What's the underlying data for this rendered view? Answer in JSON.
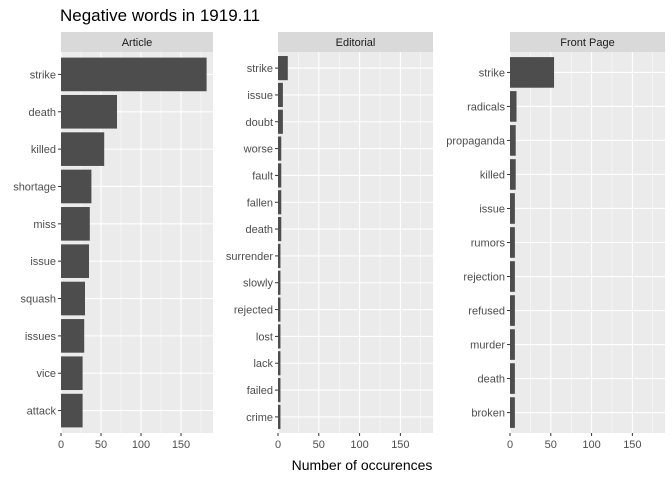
{
  "chart_data": {
    "type": "bar",
    "orientation": "horizontal",
    "title": "Negative words in 1919.11",
    "xlabel": "Number of occurences",
    "ylabel": "",
    "xlim": [
      0,
      190
    ],
    "x_ticks": [
      0,
      50,
      100,
      150
    ],
    "grid": true,
    "facets": [
      {
        "name": "Article",
        "categories": [
          "strike",
          "death",
          "killed",
          "shortage",
          "miss",
          "issue",
          "squash",
          "issues",
          "vice",
          "attack"
        ],
        "values": [
          182,
          70,
          54,
          38,
          36,
          35,
          30,
          29,
          27,
          27
        ]
      },
      {
        "name": "Editorial",
        "categories": [
          "strike",
          "issue",
          "doubt",
          "worse",
          "fault",
          "fallen",
          "death",
          "surrender",
          "slowly",
          "rejected",
          "lost",
          "lack",
          "failed",
          "crime"
        ],
        "values": [
          12,
          6,
          6,
          4,
          4,
          4,
          4,
          3,
          3,
          3,
          3,
          3,
          3,
          3
        ]
      },
      {
        "name": "Front Page",
        "categories": [
          "strike",
          "radicals",
          "propaganda",
          "killed",
          "issue",
          "rumors",
          "rejection",
          "refused",
          "murder",
          "death",
          "broken"
        ],
        "values": [
          54,
          8,
          7,
          7,
          6,
          6,
          6,
          6,
          6,
          6,
          6
        ]
      }
    ]
  }
}
